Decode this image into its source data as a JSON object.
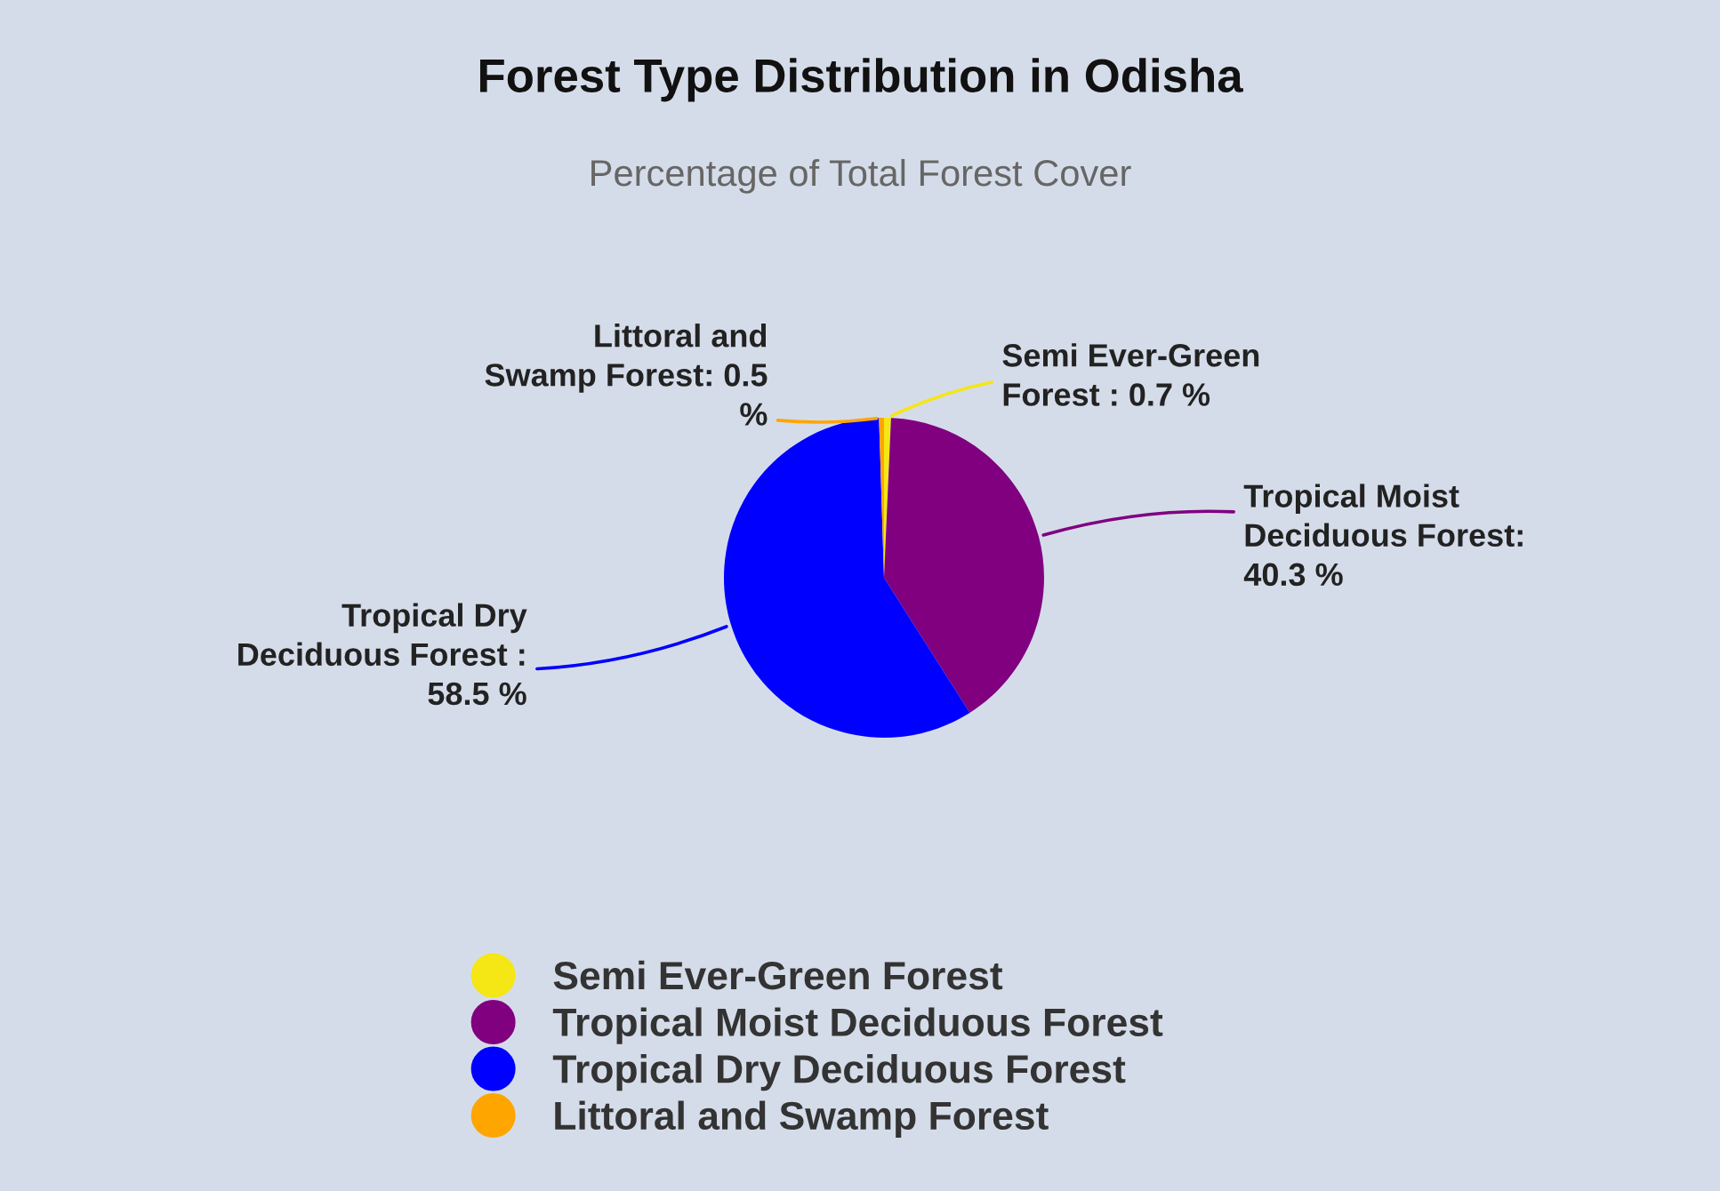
{
  "chart_data": {
    "type": "pie",
    "title": "Forest Type Distribution in Odisha",
    "subtitle": "Percentage of Total Forest Cover",
    "categories": [
      "Semi Ever-Green Forest",
      "Tropical Moist Deciduous Forest",
      "Tropical Dry Deciduous Forest",
      "Littoral and Swamp Forest"
    ],
    "values": [
      0.7,
      40.3,
      58.5,
      0.5
    ],
    "colors": [
      "#f5e616",
      "#800080",
      "#0000ff",
      "#ffa500"
    ],
    "value_labels": [
      "Semi Ever-Green\nForest : 0.7 %",
      "Tropical Moist\nDeciduous Forest:\n40.3 %",
      "Tropical Dry\nDeciduous Forest :\n58.5 %",
      "Littoral and\nSwamp Forest: 0.5\n%"
    ],
    "legend": "bottom"
  }
}
